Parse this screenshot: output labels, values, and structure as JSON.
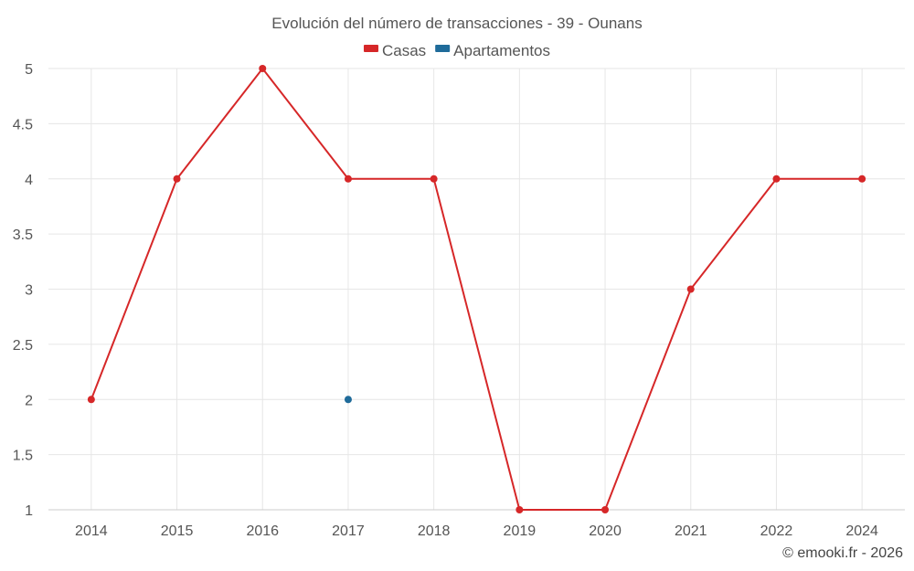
{
  "chart_data": {
    "type": "line",
    "title": "Evolución del número de transacciones - 39 - Ounans",
    "xlabel": "",
    "ylabel": "",
    "categories": [
      "2014",
      "2015",
      "2016",
      "2017",
      "2018",
      "2019",
      "2020",
      "2021",
      "2022",
      "2024"
    ],
    "ylim": [
      1,
      5
    ],
    "yticks": [
      "1",
      "1.5",
      "2",
      "2.5",
      "3",
      "3.5",
      "4",
      "4.5",
      "5"
    ],
    "grid": true,
    "legend_position": "top-center",
    "series": [
      {
        "name": "Casas",
        "color": "#d62728",
        "values": [
          2,
          4,
          5,
          4,
          4,
          1,
          1,
          3,
          4,
          4
        ]
      },
      {
        "name": "Apartamentos",
        "color": "#1f6b9a",
        "values": [
          null,
          null,
          null,
          2,
          null,
          null,
          null,
          null,
          null,
          null
        ]
      }
    ]
  },
  "credit": "© emooki.fr - 2026"
}
